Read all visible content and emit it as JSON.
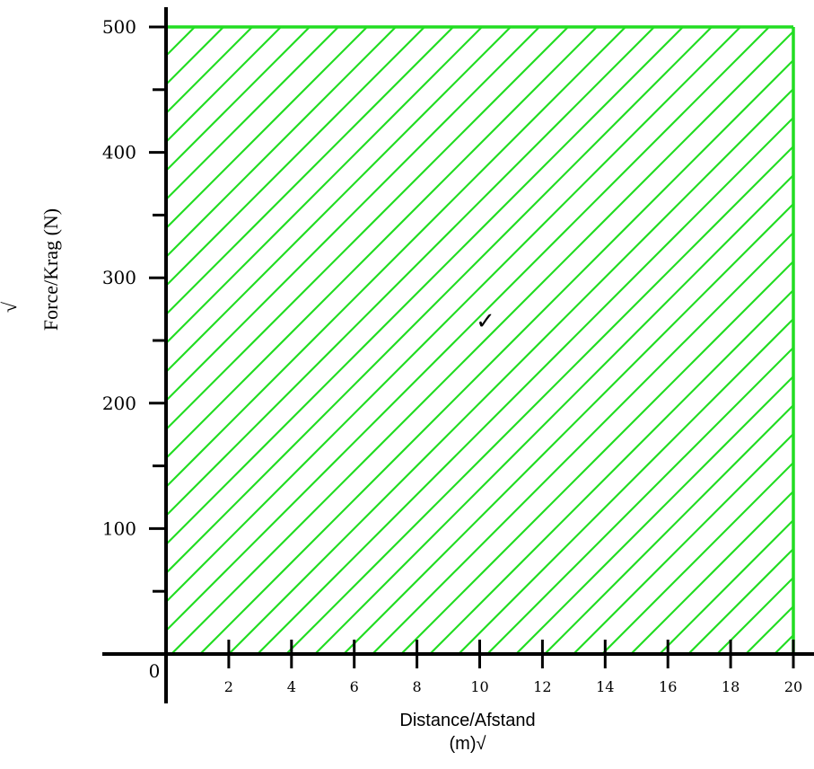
{
  "chart_data": {
    "type": "area",
    "xlabel_line1": "Distance/Afstand",
    "xlabel_line2": "(m)√",
    "ylabel": "Force/Krag (N)",
    "ylabel_mark": "√",
    "origin_label": "0",
    "x_ticks": [
      2,
      4,
      6,
      8,
      10,
      12,
      14,
      16,
      18,
      20
    ],
    "y_ticks": [
      100,
      200,
      300,
      400,
      500
    ],
    "xlim": [
      0,
      20
    ],
    "ylim": [
      0,
      500
    ],
    "series": [
      {
        "x": [
          0,
          20
        ],
        "y": [
          500,
          500
        ],
        "fill": "hatched"
      }
    ],
    "area_mark": "✓",
    "colors": {
      "series": "#22dd22",
      "axes": "#000000"
    },
    "grid": false
  }
}
